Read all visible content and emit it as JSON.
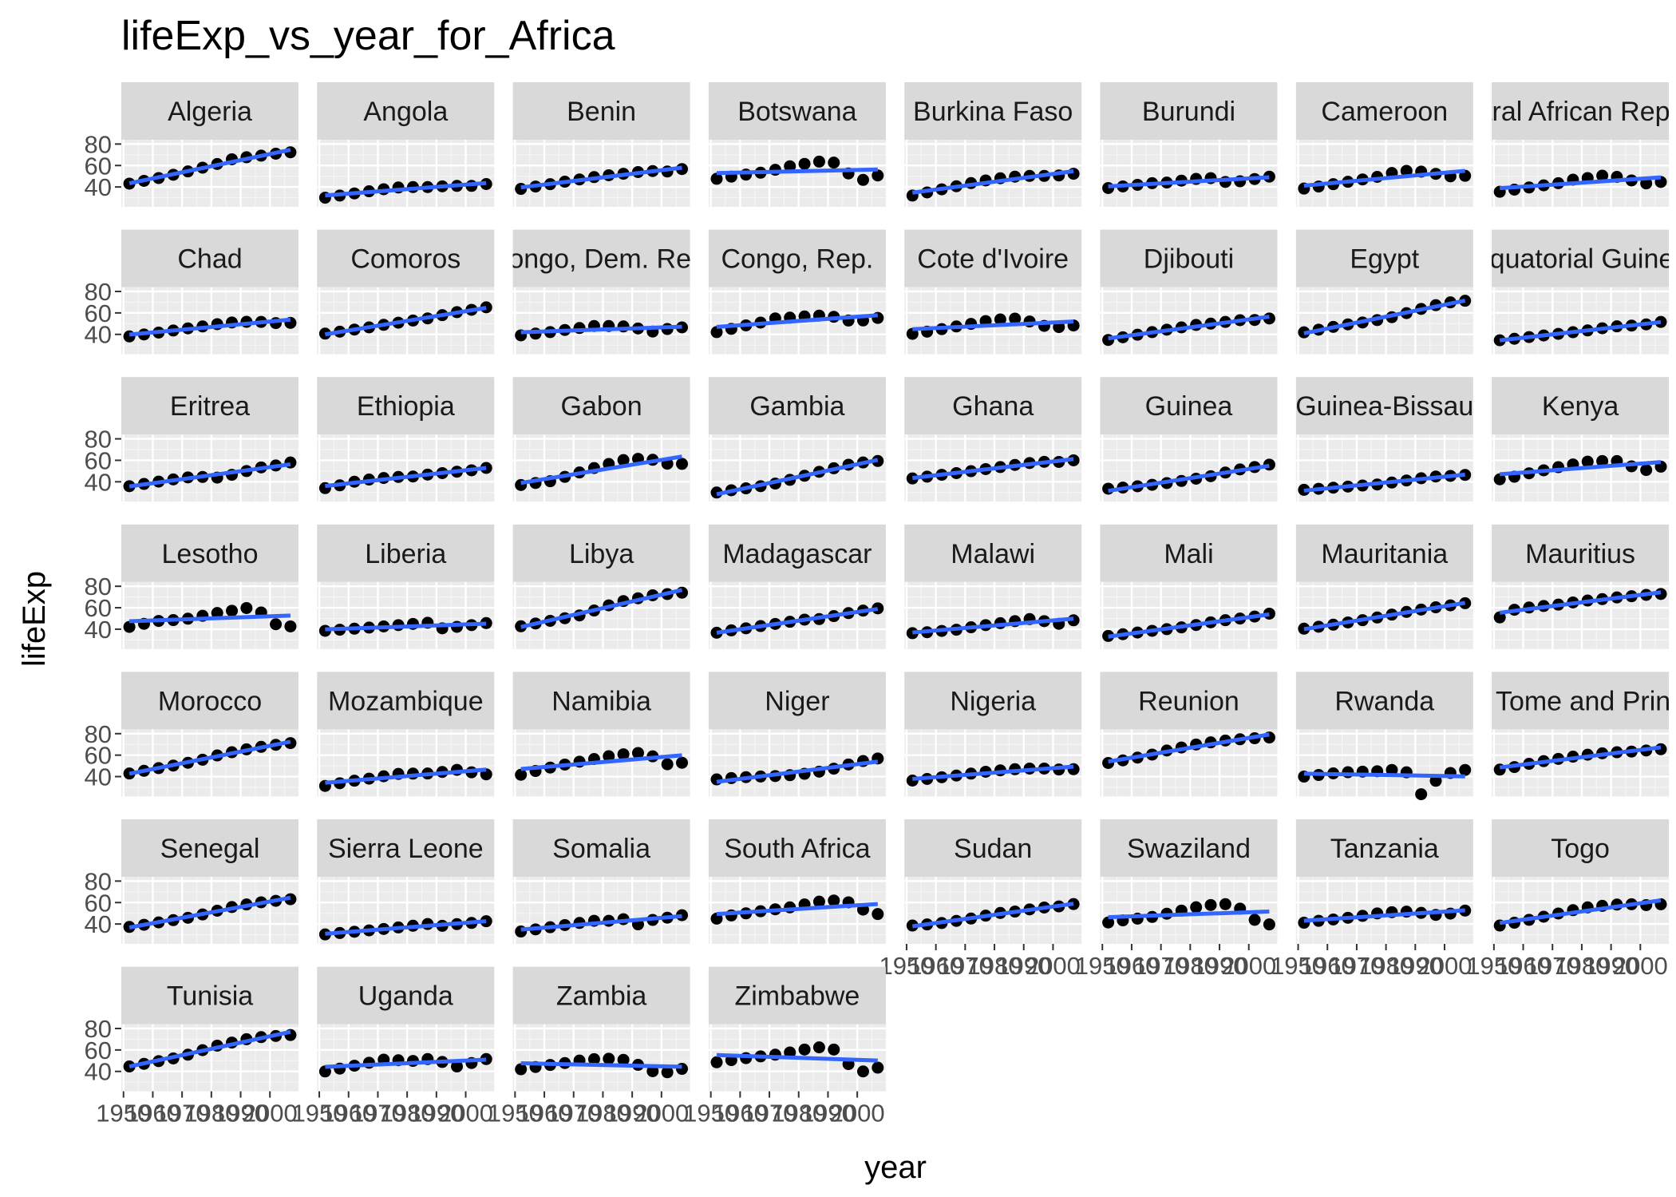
{
  "chart_data": {
    "type": "scatter",
    "title": "lifeExp_vs_year_for_Africa",
    "xlabel": "year",
    "ylabel": "lifeExp",
    "x": [
      1952,
      1957,
      1962,
      1967,
      1972,
      1977,
      1982,
      1987,
      1992,
      1997,
      2002,
      2007
    ],
    "x_tick_labels": [
      "1950",
      "1960",
      "1970",
      "1980",
      "1990",
      "2000"
    ],
    "x_tick_values": [
      1950,
      1960,
      1970,
      1980,
      1990,
      2000
    ],
    "xlim": [
      1949.25,
      2009.75
    ],
    "y_tick_labels": [
      "40",
      "60",
      "80"
    ],
    "y_tick_values": [
      40,
      60,
      80
    ],
    "ylim": [
      21.5,
      84
    ],
    "grid": true,
    "smooth_line": "linear fit per country",
    "colors": {
      "panel_bg": "#ebebeb",
      "strip_bg": "#d9d9d9",
      "grid_major": "#ffffff",
      "grid_minor": "#f5f5f5",
      "points": "#000000",
      "fit_line": "#3366ff",
      "tick_text": "#4d4d4d"
    },
    "panels": [
      {
        "label": "Algeria",
        "values": [
          43.1,
          45.7,
          48.3,
          51.4,
          54.5,
          58.0,
          61.4,
          65.8,
          67.7,
          69.2,
          71.0,
          72.3
        ]
      },
      {
        "label": "Angola",
        "values": [
          30.0,
          32.0,
          34.0,
          36.0,
          37.9,
          39.5,
          39.9,
          39.9,
          40.6,
          41.0,
          41.0,
          42.7
        ]
      },
      {
        "label": "Benin",
        "values": [
          38.2,
          40.4,
          42.6,
          44.9,
          47.0,
          49.2,
          50.9,
          52.3,
          53.9,
          54.8,
          54.4,
          56.7
        ]
      },
      {
        "label": "Botswana",
        "values": [
          47.6,
          49.6,
          51.5,
          53.3,
          56.0,
          59.3,
          61.5,
          63.6,
          62.7,
          52.6,
          46.6,
          50.7
        ]
      },
      {
        "label": "Burkina Faso",
        "values": [
          32.0,
          34.9,
          37.8,
          40.7,
          43.6,
          46.1,
          48.1,
          49.6,
          50.3,
          50.3,
          50.7,
          52.3
        ]
      },
      {
        "label": "Burundi",
        "values": [
          39.0,
          40.5,
          42.0,
          43.5,
          44.1,
          45.9,
          47.5,
          48.2,
          44.7,
          45.3,
          47.4,
          49.6
        ]
      },
      {
        "label": "Cameroon",
        "values": [
          38.5,
          40.4,
          42.6,
          44.8,
          47.0,
          49.4,
          53.0,
          55.0,
          54.3,
          52.2,
          49.9,
          50.4
        ]
      },
      {
        "label": "Central African Republic",
        "values": [
          35.5,
          37.5,
          39.5,
          41.5,
          43.5,
          46.8,
          48.3,
          50.5,
          49.4,
          46.1,
          43.3,
          44.7
        ]
      },
      {
        "label": "Chad",
        "values": [
          38.1,
          39.9,
          41.7,
          43.6,
          45.6,
          47.4,
          49.5,
          51.1,
          51.7,
          51.6,
          50.5,
          50.7
        ]
      },
      {
        "label": "Comoros",
        "values": [
          40.7,
          42.5,
          44.5,
          46.5,
          48.9,
          50.9,
          52.9,
          54.9,
          57.9,
          60.7,
          62.9,
          65.2
        ]
      },
      {
        "label": "Congo, Dem. Rep.",
        "values": [
          39.1,
          40.7,
          42.1,
          44.1,
          45.9,
          47.8,
          47.8,
          47.4,
          45.5,
          42.6,
          45.0,
          46.5
        ]
      },
      {
        "label": "Congo, Rep.",
        "values": [
          42.1,
          45.1,
          48.4,
          51.0,
          54.9,
          55.6,
          56.7,
          57.5,
          56.4,
          52.9,
          53.0,
          55.3
        ]
      },
      {
        "label": "Cote d'Ivoire",
        "values": [
          40.5,
          42.5,
          44.9,
          47.4,
          49.8,
          52.4,
          53.9,
          54.7,
          52.0,
          47.9,
          46.8,
          48.3
        ]
      },
      {
        "label": "Djibouti",
        "values": [
          34.8,
          37.3,
          39.7,
          42.1,
          44.4,
          46.5,
          48.8,
          50.0,
          51.6,
          53.2,
          53.4,
          54.8
        ]
      },
      {
        "label": "Egypt",
        "values": [
          41.9,
          44.4,
          47.0,
          49.3,
          51.1,
          53.3,
          56.0,
          59.8,
          63.7,
          67.2,
          69.8,
          71.3
        ]
      },
      {
        "label": "Equatorial Guinea",
        "values": [
          34.5,
          35.9,
          37.5,
          38.99,
          40.5,
          42.0,
          43.7,
          45.7,
          47.5,
          48.2,
          49.3,
          51.6
        ]
      },
      {
        "label": "Eritrea",
        "values": [
          35.9,
          38.0,
          40.2,
          42.2,
          44.1,
          44.5,
          43.9,
          46.5,
          49.99,
          53.4,
          55.2,
          58.0
        ]
      },
      {
        "label": "Ethiopia",
        "values": [
          34.1,
          36.7,
          40.1,
          42.1,
          43.5,
          44.5,
          44.9,
          46.7,
          48.1,
          49.4,
          50.7,
          52.9
        ]
      },
      {
        "label": "Gabon",
        "values": [
          37.0,
          38.9,
          40.5,
          44.6,
          48.7,
          52.8,
          56.6,
          60.2,
          61.4,
          60.5,
          56.8,
          56.7
        ]
      },
      {
        "label": "Gambia",
        "values": [
          30.0,
          32.1,
          33.9,
          35.9,
          38.3,
          41.8,
          45.6,
          49.3,
          52.6,
          55.9,
          58.0,
          59.4
        ]
      },
      {
        "label": "Ghana",
        "values": [
          43.1,
          44.8,
          46.5,
          48.1,
          49.9,
          51.8,
          53.7,
          55.7,
          57.5,
          58.6,
          58.5,
          60.0
        ]
      },
      {
        "label": "Guinea",
        "values": [
          33.6,
          34.6,
          35.8,
          37.2,
          38.8,
          40.8,
          42.9,
          45.2,
          48.6,
          51.5,
          53.7,
          56.0
        ]
      },
      {
        "label": "Guinea-Bissau",
        "values": [
          32.5,
          33.5,
          34.5,
          35.5,
          36.5,
          37.5,
          39.3,
          41.2,
          43.3,
          44.9,
          45.5,
          46.4
        ]
      },
      {
        "label": "Kenya",
        "values": [
          42.3,
          44.7,
          47.9,
          50.7,
          53.6,
          56.2,
          58.8,
          59.3,
          59.3,
          54.4,
          50.99,
          54.1
        ]
      },
      {
        "label": "Lesotho",
        "values": [
          42.1,
          45.0,
          47.7,
          48.5,
          49.8,
          52.5,
          55.1,
          57.2,
          59.7,
          55.6,
          44.6,
          42.6
        ]
      },
      {
        "label": "Liberia",
        "values": [
          38.5,
          39.5,
          40.5,
          41.5,
          42.6,
          43.8,
          44.9,
          46.0,
          40.8,
          42.2,
          43.8,
          45.7
        ]
      },
      {
        "label": "Libya",
        "values": [
          42.7,
          45.3,
          47.8,
          50.2,
          52.8,
          57.4,
          62.2,
          66.2,
          68.8,
          71.6,
          72.7,
          74.0
        ]
      },
      {
        "label": "Madagascar",
        "values": [
          36.7,
          38.9,
          40.8,
          42.9,
          44.9,
          46.9,
          48.9,
          49.4,
          52.2,
          54.98,
          57.3,
          59.4
        ]
      },
      {
        "label": "Malawi",
        "values": [
          36.3,
          37.2,
          38.4,
          39.5,
          41.8,
          43.8,
          45.6,
          47.5,
          49.4,
          47.5,
          45.0,
          48.3
        ]
      },
      {
        "label": "Mali",
        "values": [
          33.7,
          35.3,
          36.9,
          38.5,
          40.0,
          41.7,
          43.9,
          46.4,
          48.4,
          49.9,
          51.8,
          54.5
        ]
      },
      {
        "label": "Mauritania",
        "values": [
          40.5,
          42.3,
          44.2,
          46.3,
          48.4,
          50.9,
          53.6,
          56.1,
          58.3,
          60.4,
          62.2,
          64.2
        ]
      },
      {
        "label": "Mauritius",
        "values": [
          51.0,
          58.1,
          60.2,
          61.6,
          62.9,
          64.9,
          66.7,
          68.0,
          69.6,
          70.7,
          71.95,
          72.8
        ]
      },
      {
        "label": "Morocco",
        "values": [
          42.9,
          45.4,
          47.9,
          50.3,
          52.9,
          55.7,
          59.7,
          62.7,
          65.4,
          67.7,
          69.6,
          71.2
        ]
      },
      {
        "label": "Mozambique",
        "values": [
          31.3,
          33.8,
          36.2,
          38.1,
          40.3,
          42.5,
          42.8,
          42.9,
          44.3,
          46.3,
          44.0,
          42.1
        ]
      },
      {
        "label": "Namibia",
        "values": [
          41.7,
          45.2,
          48.4,
          51.2,
          53.9,
          56.4,
          58.97,
          60.8,
          62.0,
          58.9,
          51.5,
          52.9
        ]
      },
      {
        "label": "Niger",
        "values": [
          37.4,
          38.6,
          39.5,
          40.1,
          40.5,
          41.3,
          42.6,
          44.6,
          47.4,
          51.3,
          54.5,
          56.9
        ]
      },
      {
        "label": "Nigeria",
        "values": [
          36.3,
          37.8,
          39.4,
          41.0,
          42.8,
          44.5,
          45.8,
          46.9,
          47.5,
          47.5,
          46.6,
          46.9
        ]
      },
      {
        "label": "Reunion",
        "values": [
          52.7,
          55.1,
          57.7,
          60.5,
          64.3,
          67.1,
          69.9,
          71.9,
          73.6,
          74.8,
          75.7,
          76.4
        ]
      },
      {
        "label": "Rwanda",
        "values": [
          40.0,
          41.5,
          43.0,
          44.1,
          44.6,
          45.0,
          46.2,
          44.0,
          23.6,
          36.1,
          43.4,
          46.2
        ]
      },
      {
        "label": "Sao Tome and Principe",
        "values": [
          46.5,
          48.9,
          51.9,
          54.4,
          56.5,
          58.6,
          60.4,
          61.7,
          62.7,
          63.3,
          64.3,
          65.5
        ]
      },
      {
        "label": "Senegal",
        "values": [
          37.3,
          39.3,
          41.5,
          43.6,
          45.8,
          48.9,
          52.4,
          55.8,
          58.2,
          60.2,
          61.6,
          63.1
        ]
      },
      {
        "label": "Sierra Leone",
        "values": [
          30.3,
          31.6,
          32.8,
          34.1,
          35.4,
          36.8,
          38.4,
          40.0,
          38.3,
          39.9,
          41.0,
          42.6
        ]
      },
      {
        "label": "Somalia",
        "values": [
          33.0,
          35.0,
          37.0,
          39.0,
          41.0,
          43.0,
          43.0,
          44.5,
          39.7,
          43.8,
          45.9,
          48.2
        ]
      },
      {
        "label": "South Africa",
        "values": [
          45.0,
          47.98,
          49.95,
          51.9,
          53.7,
          55.5,
          58.2,
          60.8,
          61.9,
          60.2,
          53.4,
          49.3
        ]
      },
      {
        "label": "Sudan",
        "values": [
          38.6,
          39.6,
          40.9,
          42.9,
          45.1,
          47.8,
          50.3,
          51.6,
          53.6,
          55.4,
          56.4,
          58.6
        ]
      },
      {
        "label": "Swaziland",
        "values": [
          41.4,
          43.4,
          44.99,
          46.6,
          49.6,
          52.5,
          55.6,
          57.7,
          58.5,
          54.3,
          43.9,
          39.6
        ]
      },
      {
        "label": "Tanzania",
        "values": [
          41.2,
          42.97,
          44.2,
          45.8,
          47.6,
          49.9,
          51.0,
          51.5,
          50.4,
          48.5,
          49.7,
          52.5
        ]
      },
      {
        "label": "Togo",
        "values": [
          38.6,
          41.2,
          43.9,
          46.8,
          49.8,
          52.9,
          55.5,
          56.9,
          58.1,
          58.4,
          57.6,
          58.4
        ]
      },
      {
        "label": "Tunisia",
        "values": [
          44.6,
          47.1,
          49.6,
          52.1,
          55.6,
          59.8,
          64.0,
          66.9,
          70.0,
          71.97,
          73.0,
          73.9
        ]
      },
      {
        "label": "Uganda",
        "values": [
          39.98,
          42.6,
          45.3,
          48.1,
          51.0,
          50.4,
          49.8,
          51.5,
          48.8,
          44.6,
          47.8,
          51.5
        ]
      },
      {
        "label": "Zambia",
        "values": [
          42.0,
          44.1,
          46.0,
          47.8,
          50.1,
          51.4,
          51.8,
          50.8,
          46.1,
          40.2,
          39.2,
          42.4
        ]
      },
      {
        "label": "Zimbabwe",
        "values": [
          48.5,
          50.5,
          52.4,
          54.0,
          55.6,
          57.7,
          60.4,
          62.4,
          60.4,
          46.8,
          39.99,
          43.5
        ]
      }
    ]
  }
}
